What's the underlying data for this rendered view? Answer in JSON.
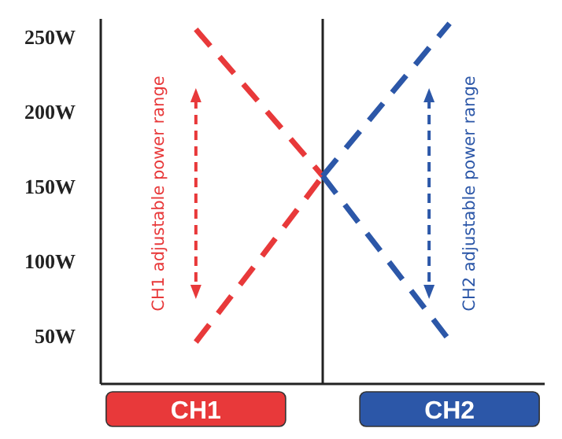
{
  "chart_data": {
    "type": "line",
    "line_style": "dashed",
    "marker": "none",
    "ylim": [
      18,
      262
    ],
    "yticks": [
      {
        "value": 50,
        "label": "50W"
      },
      {
        "value": 100,
        "label": "100W"
      },
      {
        "value": 150,
        "label": "150W"
      },
      {
        "value": 200,
        "label": "200W"
      },
      {
        "value": 250,
        "label": "250W"
      }
    ],
    "categories": [
      null,
      "CH1",
      null,
      null,
      null,
      "CH2",
      null
    ],
    "series": [
      {
        "color": "#e8393a",
        "values": [
          null,
          255,
          206,
          157,
          null,
          null,
          null
        ]
      },
      {
        "color": "#e8393a",
        "values": [
          null,
          46,
          101,
          157,
          null,
          null,
          null
        ]
      },
      {
        "color": "#2c57a8",
        "values": [
          null,
          null,
          null,
          157,
          208,
          259,
          null
        ]
      },
      {
        "color": "#2c57a8",
        "values": [
          null,
          null,
          null,
          157,
          102,
          47,
          null
        ]
      }
    ],
    "annotations": [
      "CH1 adjustable power range",
      "CH2 adjustable power range"
    ]
  }
}
